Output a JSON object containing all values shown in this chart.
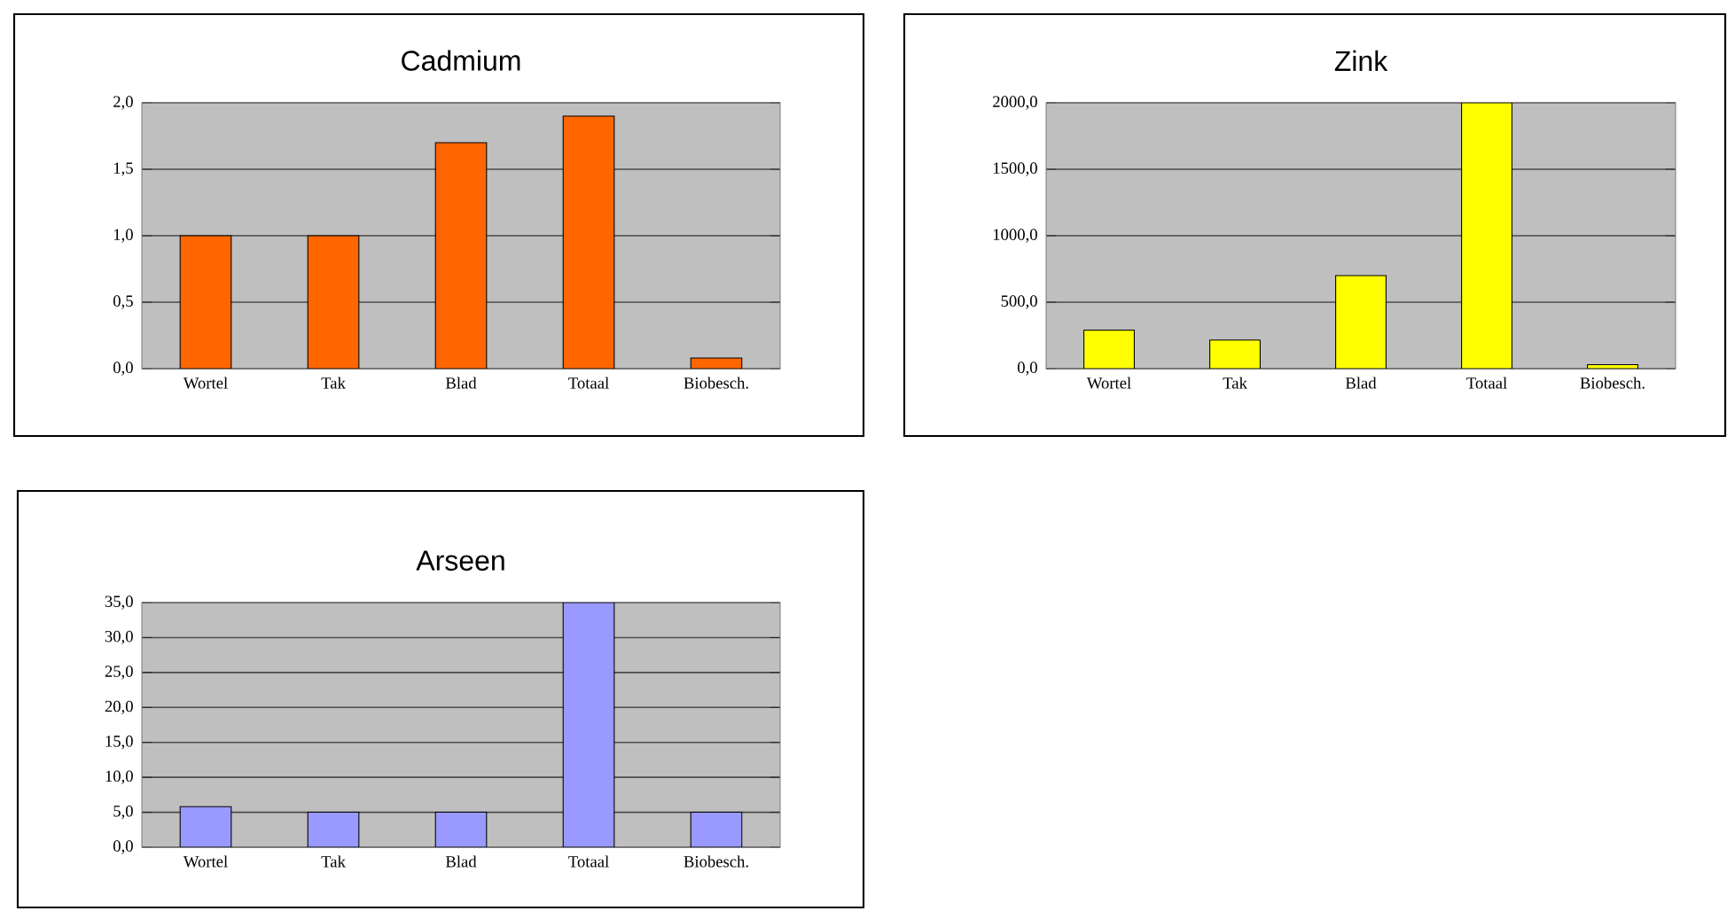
{
  "chart_data": [
    {
      "type": "bar",
      "title": "Cadmium",
      "categories": [
        "Wortel",
        "Tak",
        "Blad",
        "Totaal",
        "Biobesch."
      ],
      "values": [
        1.0,
        1.0,
        1.7,
        1.9,
        0.08
      ],
      "color": "#ff6600",
      "ylim": [
        0,
        2
      ],
      "yticks": [
        {
          "value": 0,
          "label": "0,0"
        },
        {
          "value": 0.5,
          "label": "0,5"
        },
        {
          "value": 1,
          "label": "1,0"
        },
        {
          "value": 1.5,
          "label": "1,5"
        },
        {
          "value": 2,
          "label": "2,0"
        }
      ],
      "grid": "y"
    },
    {
      "type": "bar",
      "title": "Zink",
      "categories": [
        "Wortel",
        "Tak",
        "Blad",
        "Totaal",
        "Biobesch."
      ],
      "values": [
        290,
        215,
        700,
        2000,
        30
      ],
      "color": "#ffff00",
      "ylim": [
        0,
        2000
      ],
      "yticks": [
        {
          "value": 0,
          "label": "0,0"
        },
        {
          "value": 500,
          "label": "500,0"
        },
        {
          "value": 1000,
          "label": "1000,0"
        },
        {
          "value": 1500,
          "label": "1500,0"
        },
        {
          "value": 2000,
          "label": "2000,0"
        }
      ],
      "grid": "y"
    },
    {
      "type": "bar",
      "title": "Arseen",
      "categories": [
        "Wortel",
        "Tak",
        "Blad",
        "Totaal",
        "Biobesch."
      ],
      "values": [
        5.8,
        5.0,
        5.0,
        35,
        5.0
      ],
      "color": "#9999ff",
      "ylim": [
        0,
        35
      ],
      "yticks": [
        {
          "value": 0,
          "label": "0,0"
        },
        {
          "value": 5,
          "label": "5,0"
        },
        {
          "value": 10,
          "label": "10,0"
        },
        {
          "value": 15,
          "label": "15,0"
        },
        {
          "value": 20,
          "label": "20,0"
        },
        {
          "value": 25,
          "label": "25,0"
        },
        {
          "value": 30,
          "label": "30,0"
        },
        {
          "value": 35,
          "label": "35,0"
        }
      ],
      "grid": "y"
    }
  ]
}
